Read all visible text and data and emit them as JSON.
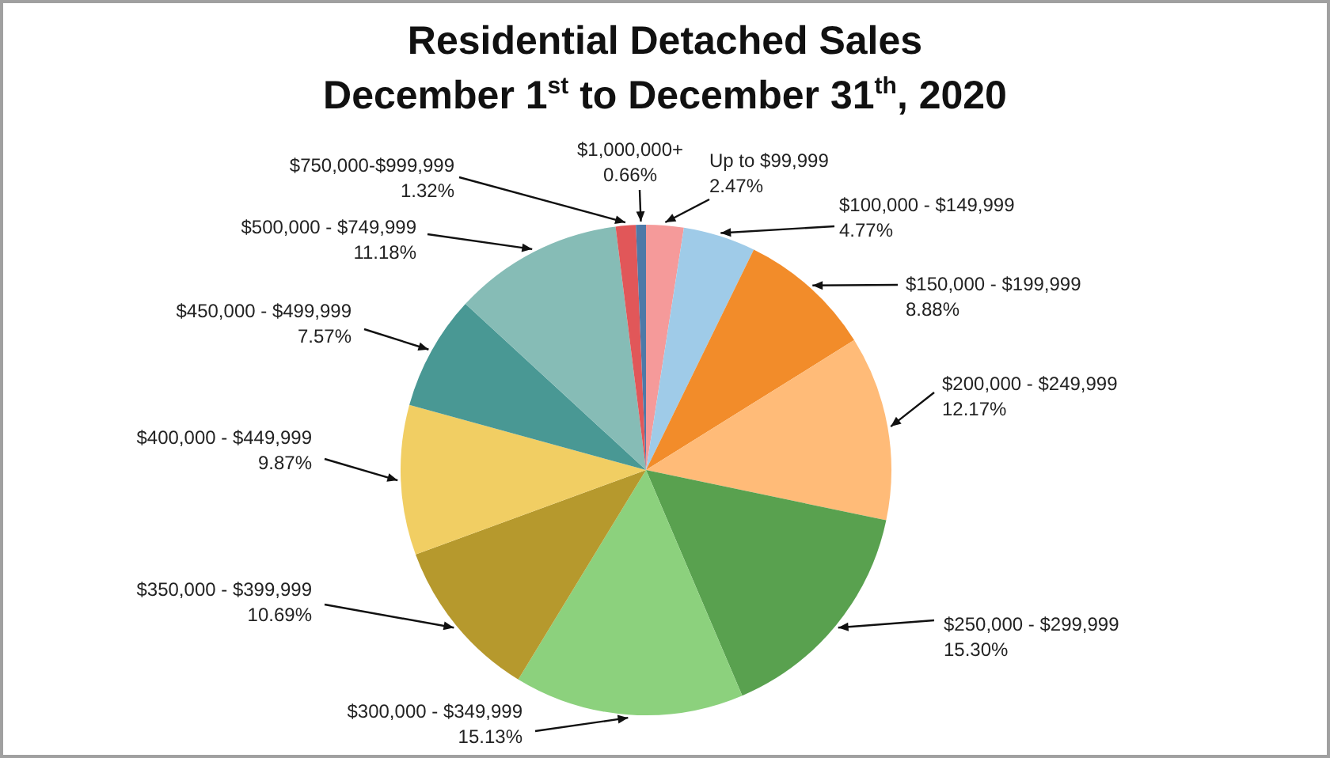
{
  "chart_data": {
    "type": "pie",
    "title": "Residential Detached Sales",
    "subtitle": "December 1$^{st}$ to December 31$^{th}$, 2020",
    "categories": [
      "Up to $99,999",
      "$100,000 - $149,999",
      "$150,000 - $199,999",
      "$200,000 - $249,999",
      "$250,000 - $299,999",
      "$300,000 - $349,999",
      "$350,000 - $399,999",
      "$400,000 - $449,999",
      "$450,000 - $499,999",
      "$500,000 - $749,999",
      "$750,000-$999,999",
      "$1,000,000+"
    ],
    "values": [
      2.47,
      4.77,
      8.88,
      12.17,
      15.3,
      15.13,
      10.69,
      9.87,
      7.57,
      11.18,
      1.32,
      0.66
    ],
    "value_labels": [
      "2.47%",
      "4.77%",
      "8.88%",
      "12.17%",
      "15.30%",
      "15.13%",
      "10.69%",
      "9.87%",
      "7.57%",
      "11.18%",
      "1.32%",
      "0.66%"
    ],
    "colors": [
      "#f59a9a",
      "#9fcbe8",
      "#f28c2a",
      "#ffbb78",
      "#59a14f",
      "#8cd17d",
      "#b6992d",
      "#f1ce63",
      "#499894",
      "#86bcb6",
      "#e15759",
      "#4e79a7"
    ],
    "legend": false
  }
}
